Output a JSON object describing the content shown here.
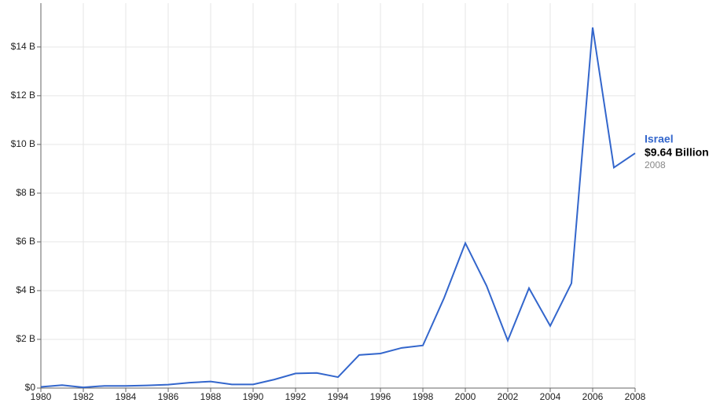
{
  "chart_data": {
    "type": "line",
    "x": [
      1980,
      1981,
      1982,
      1983,
      1984,
      1985,
      1986,
      1987,
      1988,
      1989,
      1990,
      1991,
      1992,
      1993,
      1994,
      1995,
      1996,
      1997,
      1998,
      1999,
      2000,
      2001,
      2002,
      2003,
      2004,
      2005,
      2006,
      2007,
      2008
    ],
    "series": [
      {
        "name": "Israel",
        "color": "#3366cc",
        "values": [
          0.05,
          0.12,
          0.03,
          0.09,
          0.09,
          0.11,
          0.14,
          0.22,
          0.27,
          0.15,
          0.15,
          0.35,
          0.6,
          0.62,
          0.45,
          1.36,
          1.42,
          1.65,
          1.75,
          3.7,
          5.95,
          4.2,
          1.95,
          4.1,
          2.55,
          4.3,
          14.8,
          9.05,
          9.64
        ],
        "value_labels": [
          null,
          null,
          null,
          null,
          null,
          null,
          null,
          null,
          null,
          null,
          null,
          null,
          null,
          null,
          null,
          null,
          null,
          null,
          null,
          null,
          null,
          null,
          null,
          null,
          null,
          null,
          null,
          null,
          "$9.64 Billion"
        ]
      }
    ],
    "xlim": [
      1980,
      2008
    ],
    "xticks": [
      1980,
      1982,
      1984,
      1986,
      1988,
      1990,
      1992,
      1994,
      1996,
      1998,
      2000,
      2002,
      2004,
      2006,
      2008
    ],
    "ylim": [
      0,
      15.8
    ],
    "yticks": [
      {
        "value": 0,
        "label": "$0"
      },
      {
        "value": 2,
        "label": "$2 B"
      },
      {
        "value": 4,
        "label": "$4 B"
      },
      {
        "value": 6,
        "label": "$6 B"
      },
      {
        "value": 8,
        "label": "$8 B"
      },
      {
        "value": 10,
        "label": "$10 B"
      },
      {
        "value": 12,
        "label": "$12 B"
      },
      {
        "value": 14,
        "label": "$14 B"
      }
    ],
    "grid": true
  }
}
